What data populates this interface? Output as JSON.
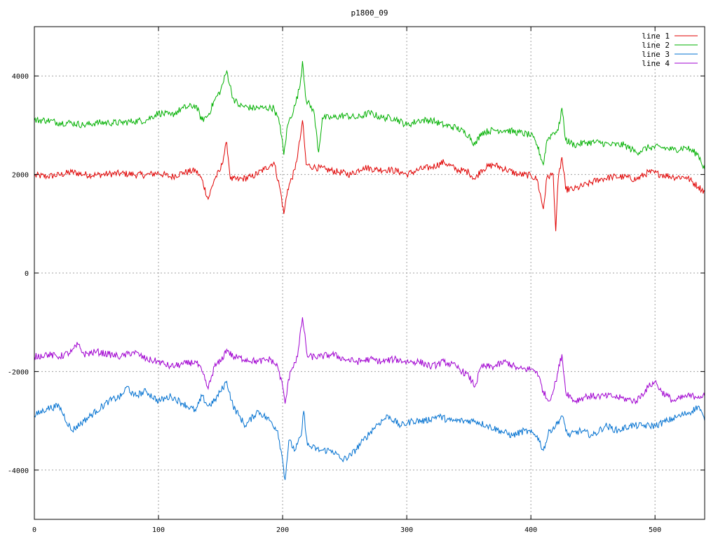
{
  "chart_data": {
    "type": "line",
    "title": "p1800_09",
    "xlabel": "",
    "ylabel": "",
    "xlim": [
      0,
      540
    ],
    "ylim": [
      -5000,
      5000
    ],
    "x_ticks": [
      0,
      100,
      200,
      300,
      400,
      500
    ],
    "y_ticks": [
      -4000,
      -2000,
      0,
      2000,
      4000
    ],
    "x_tick_labels": [
      "0",
      "100",
      "200",
      "300",
      "400",
      "500"
    ],
    "y_tick_labels": [
      "-4000",
      "-2000",
      "0",
      "2000",
      "4000"
    ],
    "grid": true,
    "legend_position": "top-right",
    "series": [
      {
        "name": "line 1",
        "color": "#e00000",
        "points": [
          [
            0,
            1980
          ],
          [
            10,
            1960
          ],
          [
            20,
            1990
          ],
          [
            30,
            2050
          ],
          [
            40,
            2000
          ],
          [
            50,
            1990
          ],
          [
            60,
            2010
          ],
          [
            70,
            2020
          ],
          [
            80,
            2000
          ],
          [
            90,
            1990
          ],
          [
            100,
            2030
          ],
          [
            110,
            1950
          ],
          [
            120,
            2040
          ],
          [
            130,
            2080
          ],
          [
            135,
            1900
          ],
          [
            140,
            1500
          ],
          [
            145,
            1900
          ],
          [
            150,
            2100
          ],
          [
            155,
            2650
          ],
          [
            158,
            1900
          ],
          [
            165,
            1900
          ],
          [
            175,
            1950
          ],
          [
            185,
            2100
          ],
          [
            193,
            2250
          ],
          [
            198,
            1700
          ],
          [
            201,
            1200
          ],
          [
            204,
            1700
          ],
          [
            210,
            2100
          ],
          [
            214,
            2700
          ],
          [
            216,
            3100
          ],
          [
            219,
            2200
          ],
          [
            225,
            2150
          ],
          [
            235,
            2100
          ],
          [
            245,
            2050
          ],
          [
            255,
            2000
          ],
          [
            265,
            2150
          ],
          [
            275,
            2100
          ],
          [
            285,
            2100
          ],
          [
            295,
            2050
          ],
          [
            300,
            2000
          ],
          [
            310,
            2100
          ],
          [
            320,
            2150
          ],
          [
            330,
            2250
          ],
          [
            340,
            2100
          ],
          [
            350,
            2050
          ],
          [
            355,
            1900
          ],
          [
            360,
            2100
          ],
          [
            370,
            2200
          ],
          [
            380,
            2100
          ],
          [
            390,
            2000
          ],
          [
            400,
            1980
          ],
          [
            405,
            1900
          ],
          [
            410,
            1300
          ],
          [
            413,
            1950
          ],
          [
            418,
            2000
          ],
          [
            420,
            850
          ],
          [
            422,
            1900
          ],
          [
            425,
            2350
          ],
          [
            428,
            1700
          ],
          [
            435,
            1700
          ],
          [
            445,
            1800
          ],
          [
            455,
            1900
          ],
          [
            465,
            1950
          ],
          [
            475,
            1950
          ],
          [
            485,
            1900
          ],
          [
            495,
            2050
          ],
          [
            505,
            2000
          ],
          [
            515,
            1950
          ],
          [
            525,
            1950
          ],
          [
            535,
            1750
          ],
          [
            540,
            1650
          ]
        ]
      },
      {
        "name": "line 2",
        "color": "#00b000",
        "points": [
          [
            0,
            3100
          ],
          [
            10,
            3100
          ],
          [
            20,
            3050
          ],
          [
            30,
            3050
          ],
          [
            40,
            3000
          ],
          [
            50,
            3050
          ],
          [
            60,
            3050
          ],
          [
            70,
            3050
          ],
          [
            80,
            3080
          ],
          [
            90,
            3100
          ],
          [
            100,
            3250
          ],
          [
            110,
            3200
          ],
          [
            120,
            3350
          ],
          [
            130,
            3400
          ],
          [
            135,
            3100
          ],
          [
            140,
            3200
          ],
          [
            145,
            3500
          ],
          [
            150,
            3700
          ],
          [
            155,
            4100
          ],
          [
            160,
            3550
          ],
          [
            165,
            3400
          ],
          [
            175,
            3350
          ],
          [
            185,
            3350
          ],
          [
            193,
            3350
          ],
          [
            198,
            3000
          ],
          [
            201,
            2400
          ],
          [
            204,
            3000
          ],
          [
            210,
            3400
          ],
          [
            214,
            3800
          ],
          [
            216,
            4300
          ],
          [
            219,
            3500
          ],
          [
            225,
            3300
          ],
          [
            229,
            2450
          ],
          [
            232,
            3150
          ],
          [
            240,
            3150
          ],
          [
            250,
            3200
          ],
          [
            260,
            3150
          ],
          [
            270,
            3250
          ],
          [
            280,
            3150
          ],
          [
            290,
            3150
          ],
          [
            300,
            3000
          ],
          [
            310,
            3100
          ],
          [
            320,
            3100
          ],
          [
            330,
            3000
          ],
          [
            340,
            2950
          ],
          [
            350,
            2800
          ],
          [
            355,
            2600
          ],
          [
            360,
            2850
          ],
          [
            370,
            2900
          ],
          [
            380,
            2900
          ],
          [
            390,
            2850
          ],
          [
            400,
            2800
          ],
          [
            405,
            2600
          ],
          [
            410,
            2200
          ],
          [
            413,
            2700
          ],
          [
            418,
            2850
          ],
          [
            422,
            2900
          ],
          [
            425,
            3350
          ],
          [
            428,
            2700
          ],
          [
            435,
            2600
          ],
          [
            445,
            2650
          ],
          [
            455,
            2650
          ],
          [
            465,
            2600
          ],
          [
            475,
            2600
          ],
          [
            485,
            2450
          ],
          [
            495,
            2550
          ],
          [
            505,
            2550
          ],
          [
            515,
            2500
          ],
          [
            525,
            2550
          ],
          [
            535,
            2400
          ],
          [
            540,
            2100
          ]
        ]
      },
      {
        "name": "line 3",
        "color": "#0070d0",
        "points": [
          [
            0,
            -2900
          ],
          [
            10,
            -2750
          ],
          [
            20,
            -2700
          ],
          [
            30,
            -3200
          ],
          [
            40,
            -3000
          ],
          [
            50,
            -2800
          ],
          [
            60,
            -2600
          ],
          [
            70,
            -2500
          ],
          [
            75,
            -2300
          ],
          [
            80,
            -2500
          ],
          [
            90,
            -2400
          ],
          [
            100,
            -2600
          ],
          [
            110,
            -2500
          ],
          [
            120,
            -2650
          ],
          [
            130,
            -2800
          ],
          [
            135,
            -2500
          ],
          [
            140,
            -2700
          ],
          [
            145,
            -2600
          ],
          [
            150,
            -2400
          ],
          [
            155,
            -2200
          ],
          [
            160,
            -2700
          ],
          [
            165,
            -2900
          ],
          [
            170,
            -3100
          ],
          [
            180,
            -2800
          ],
          [
            190,
            -3000
          ],
          [
            196,
            -3200
          ],
          [
            200,
            -3800
          ],
          [
            202,
            -4200
          ],
          [
            205,
            -3400
          ],
          [
            210,
            -3600
          ],
          [
            215,
            -3300
          ],
          [
            217,
            -2800
          ],
          [
            220,
            -3500
          ],
          [
            230,
            -3600
          ],
          [
            240,
            -3600
          ],
          [
            248,
            -3800
          ],
          [
            255,
            -3700
          ],
          [
            265,
            -3400
          ],
          [
            275,
            -3100
          ],
          [
            285,
            -2900
          ],
          [
            295,
            -3100
          ],
          [
            305,
            -3000
          ],
          [
            315,
            -3000
          ],
          [
            325,
            -2900
          ],
          [
            335,
            -3000
          ],
          [
            345,
            -3000
          ],
          [
            355,
            -3000
          ],
          [
            365,
            -3100
          ],
          [
            375,
            -3200
          ],
          [
            385,
            -3300
          ],
          [
            395,
            -3200
          ],
          [
            405,
            -3300
          ],
          [
            410,
            -3600
          ],
          [
            415,
            -3200
          ],
          [
            420,
            -3100
          ],
          [
            425,
            -2900
          ],
          [
            430,
            -3300
          ],
          [
            440,
            -3200
          ],
          [
            450,
            -3300
          ],
          [
            460,
            -3100
          ],
          [
            470,
            -3200
          ],
          [
            480,
            -3100
          ],
          [
            490,
            -3100
          ],
          [
            500,
            -3100
          ],
          [
            510,
            -3000
          ],
          [
            520,
            -2900
          ],
          [
            530,
            -2800
          ],
          [
            535,
            -2700
          ],
          [
            540,
            -3000
          ]
        ]
      },
      {
        "name": "line 4",
        "color": "#a000d0",
        "points": [
          [
            0,
            -1700
          ],
          [
            10,
            -1650
          ],
          [
            20,
            -1700
          ],
          [
            30,
            -1600
          ],
          [
            35,
            -1450
          ],
          [
            40,
            -1650
          ],
          [
            50,
            -1600
          ],
          [
            60,
            -1650
          ],
          [
            70,
            -1700
          ],
          [
            80,
            -1600
          ],
          [
            90,
            -1750
          ],
          [
            100,
            -1800
          ],
          [
            110,
            -1900
          ],
          [
            120,
            -1850
          ],
          [
            130,
            -1800
          ],
          [
            135,
            -2000
          ],
          [
            140,
            -2350
          ],
          [
            145,
            -1900
          ],
          [
            150,
            -1800
          ],
          [
            155,
            -1550
          ],
          [
            160,
            -1700
          ],
          [
            170,
            -1750
          ],
          [
            180,
            -1800
          ],
          [
            190,
            -1750
          ],
          [
            196,
            -1900
          ],
          [
            200,
            -2300
          ],
          [
            202,
            -2650
          ],
          [
            206,
            -2000
          ],
          [
            212,
            -1700
          ],
          [
            216,
            -900
          ],
          [
            220,
            -1700
          ],
          [
            230,
            -1700
          ],
          [
            240,
            -1650
          ],
          [
            250,
            -1750
          ],
          [
            260,
            -1800
          ],
          [
            270,
            -1750
          ],
          [
            280,
            -1800
          ],
          [
            290,
            -1750
          ],
          [
            300,
            -1800
          ],
          [
            310,
            -1800
          ],
          [
            320,
            -1900
          ],
          [
            330,
            -1800
          ],
          [
            340,
            -1900
          ],
          [
            350,
            -2100
          ],
          [
            355,
            -2300
          ],
          [
            360,
            -1900
          ],
          [
            370,
            -1900
          ],
          [
            380,
            -1800
          ],
          [
            390,
            -1950
          ],
          [
            400,
            -1950
          ],
          [
            405,
            -2000
          ],
          [
            410,
            -2400
          ],
          [
            414,
            -2600
          ],
          [
            418,
            -2400
          ],
          [
            420,
            -2200
          ],
          [
            425,
            -1650
          ],
          [
            428,
            -2400
          ],
          [
            435,
            -2600
          ],
          [
            445,
            -2500
          ],
          [
            455,
            -2500
          ],
          [
            465,
            -2500
          ],
          [
            475,
            -2550
          ],
          [
            485,
            -2600
          ],
          [
            495,
            -2300
          ],
          [
            500,
            -2200
          ],
          [
            505,
            -2400
          ],
          [
            515,
            -2600
          ],
          [
            525,
            -2500
          ],
          [
            535,
            -2500
          ],
          [
            540,
            -2500
          ]
        ]
      }
    ]
  }
}
